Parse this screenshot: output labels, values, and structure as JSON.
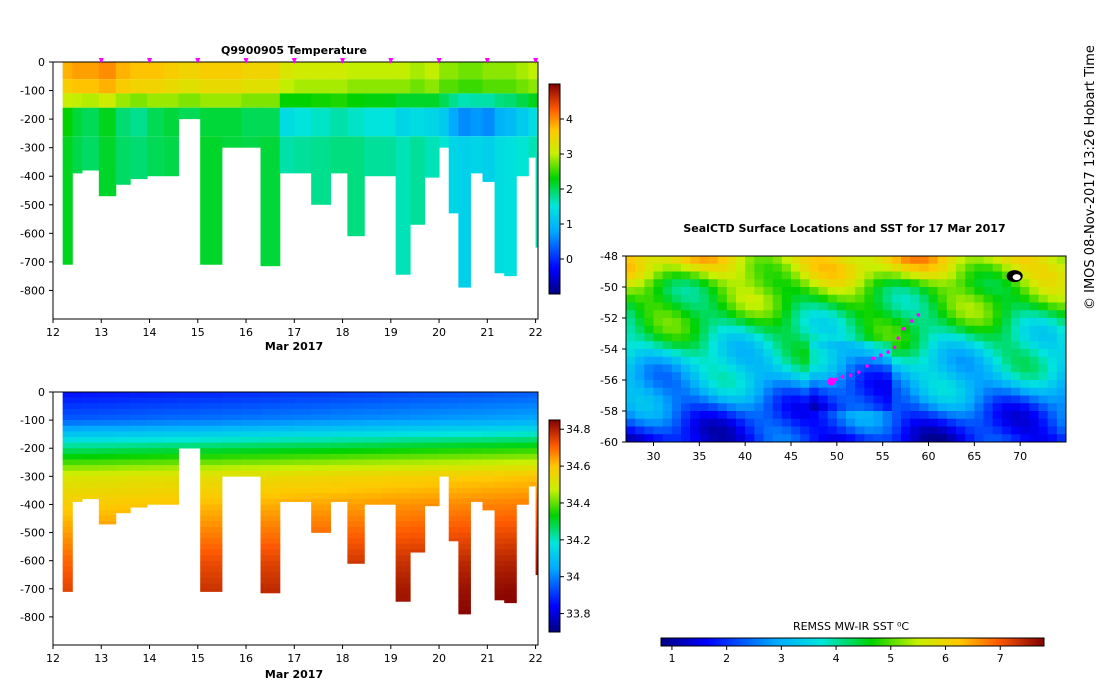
{
  "colors": {
    "background": "#ffffff",
    "track": "#ff00ff",
    "land_mask": "#ffffff"
  },
  "side_credit": "© IMOS 08-Nov-2017 13:26 Hobart Time",
  "chart_data": [
    {
      "id": "temperature",
      "type": "heatmap",
      "title": "Q9900905  Temperature",
      "xlabel": "Mar 2017",
      "ylabel": "",
      "xlim": [
        12,
        22.05
      ],
      "ylim": [
        -900,
        0
      ],
      "xticks": [
        12,
        13,
        14,
        15,
        16,
        17,
        18,
        19,
        20,
        21,
        22
      ],
      "yticks": [
        0,
        -100,
        -200,
        -300,
        -400,
        -500,
        -600,
        -700,
        -800
      ],
      "colorbar": {
        "min": -1,
        "max": 5,
        "ticks": [
          0,
          1,
          2,
          3,
          4
        ]
      },
      "profile_markers": [
        13,
        14,
        15,
        16,
        17,
        18,
        19,
        20,
        21,
        22
      ],
      "profiles": [
        {
          "day": 12.2,
          "max_depth": 710,
          "surface": 3.8,
          "mid": 2.3,
          "deep": 2.1
        },
        {
          "day": 12.4,
          "max_depth": 390,
          "surface": 3.9,
          "mid": 2.1,
          "deep": 2.0
        },
        {
          "day": 12.6,
          "max_depth": 380,
          "surface": 3.9,
          "mid": 2.0,
          "deep": 1.9
        },
        {
          "day": 12.95,
          "max_depth": 470,
          "surface": 4.0,
          "mid": 2.2,
          "deep": 2.1
        },
        {
          "day": 13.3,
          "max_depth": 430,
          "surface": 3.8,
          "mid": 1.9,
          "deep": 2.0
        },
        {
          "day": 13.6,
          "max_depth": 410,
          "surface": 3.7,
          "mid": 1.8,
          "deep": 2.0
        },
        {
          "day": 13.95,
          "max_depth": 400,
          "surface": 3.7,
          "mid": 2.0,
          "deep": 2.0
        },
        {
          "day": 14.3,
          "max_depth": 400,
          "surface": 3.6,
          "mid": 2.1,
          "deep": 2.0
        },
        {
          "day": 14.6,
          "max_depth": 200,
          "surface": 3.5,
          "mid": 2.0,
          "deep": 2.0
        },
        {
          "day": 15.05,
          "max_depth": 710,
          "surface": 3.6,
          "mid": 2.1,
          "deep": 2.2
        },
        {
          "day": 15.5,
          "max_depth": 300,
          "surface": 3.6,
          "mid": 2.1,
          "deep": 2.1
        },
        {
          "day": 15.9,
          "max_depth": 300,
          "surface": 3.5,
          "mid": 2.0,
          "deep": 2.1
        },
        {
          "day": 16.3,
          "max_depth": 715,
          "surface": 3.5,
          "mid": 2.0,
          "deep": 2.2
        },
        {
          "day": 16.7,
          "max_depth": 390,
          "surface": 3.2,
          "mid": 1.4,
          "deep": 2.0
        },
        {
          "day": 17.0,
          "max_depth": 390,
          "surface": 3.1,
          "mid": 1.5,
          "deep": 2.0
        },
        {
          "day": 17.35,
          "max_depth": 500,
          "surface": 3.1,
          "mid": 1.6,
          "deep": 2.0
        },
        {
          "day": 17.75,
          "max_depth": 390,
          "surface": 3.1,
          "mid": 1.7,
          "deep": 2.0
        },
        {
          "day": 18.1,
          "max_depth": 610,
          "surface": 3.0,
          "mid": 1.6,
          "deep": 2.1
        },
        {
          "day": 18.45,
          "max_depth": 400,
          "surface": 3.0,
          "mid": 1.5,
          "deep": 2.0
        },
        {
          "day": 18.8,
          "max_depth": 400,
          "surface": 3.0,
          "mid": 1.5,
          "deep": 2.0
        },
        {
          "day": 19.1,
          "max_depth": 745,
          "surface": 3.0,
          "mid": 1.3,
          "deep": 2.0
        },
        {
          "day": 19.4,
          "max_depth": 570,
          "surface": 2.9,
          "mid": 1.4,
          "deep": 2.1
        },
        {
          "day": 19.7,
          "max_depth": 405,
          "surface": 3.0,
          "mid": 1.3,
          "deep": 2.0
        },
        {
          "day": 20.0,
          "max_depth": 300,
          "surface": 2.8,
          "mid": 1.2,
          "deep": 1.9
        },
        {
          "day": 20.2,
          "max_depth": 530,
          "surface": 2.8,
          "mid": 0.8,
          "deep": 1.8
        },
        {
          "day": 20.4,
          "max_depth": 790,
          "surface": 2.7,
          "mid": 0.6,
          "deep": 1.9
        },
        {
          "day": 20.65,
          "max_depth": 390,
          "surface": 2.7,
          "mid": 0.7,
          "deep": 1.9
        },
        {
          "day": 20.9,
          "max_depth": 420,
          "surface": 2.8,
          "mid": 0.6,
          "deep": 1.9
        },
        {
          "day": 21.15,
          "max_depth": 740,
          "surface": 2.8,
          "mid": 0.9,
          "deep": 1.9
        },
        {
          "day": 21.35,
          "max_depth": 750,
          "surface": 2.8,
          "mid": 1.0,
          "deep": 1.9
        },
        {
          "day": 21.6,
          "max_depth": 400,
          "surface": 2.9,
          "mid": 1.2,
          "deep": 1.9
        },
        {
          "day": 21.85,
          "max_depth": 335,
          "surface": 3.0,
          "mid": 1.4,
          "deep": 1.9
        },
        {
          "day": 22.0,
          "max_depth": 650,
          "surface": 3.0,
          "mid": 1.5,
          "deep": 1.8
        }
      ]
    },
    {
      "id": "salinity",
      "type": "heatmap",
      "title": "",
      "xlabel": "Mar 2017",
      "ylabel": "",
      "xlim": [
        12,
        22.05
      ],
      "ylim": [
        -900,
        0
      ],
      "xticks": [
        12,
        13,
        14,
        15,
        16,
        17,
        18,
        19,
        20,
        21,
        22
      ],
      "yticks": [
        0,
        -100,
        -200,
        -300,
        -400,
        -500,
        -600,
        -700,
        -800
      ],
      "colorbar": {
        "min": 33.7,
        "max": 34.85,
        "ticks": [
          33.8,
          34,
          34.2,
          34.4,
          34.6,
          34.8
        ]
      },
      "surface_values": [
        33.85,
        33.88,
        33.92,
        33.95,
        33.98
      ],
      "depth_profile": [
        {
          "depth": 0,
          "value": 33.85
        },
        {
          "depth": 100,
          "value": 33.95
        },
        {
          "depth": 200,
          "value": 34.25
        },
        {
          "depth": 300,
          "value": 34.5
        },
        {
          "depth": 400,
          "value": 34.58
        },
        {
          "depth": 500,
          "value": 34.64
        },
        {
          "depth": 600,
          "value": 34.7
        },
        {
          "depth": 700,
          "value": 34.74
        },
        {
          "depth": 800,
          "value": 34.76
        }
      ]
    },
    {
      "id": "sst_map",
      "type": "heatmap",
      "title": "SealCTD Surface Locations and SST for 17 Mar 2017",
      "xlabel": "",
      "ylabel": "",
      "xlim": [
        27,
        75
      ],
      "ylim": [
        -60,
        -48
      ],
      "xticks": [
        30,
        35,
        40,
        45,
        50,
        55,
        60,
        65,
        70
      ],
      "yticks": [
        -48,
        -50,
        -52,
        -54,
        -56,
        -58,
        -60
      ],
      "colorbar": {
        "label": "REMSS MW-IR SST ⁰C",
        "min": 0.8,
        "max": 7.8,
        "ticks": [
          1,
          2,
          3,
          4,
          5,
          6,
          7
        ]
      },
      "sst_by_latitude": [
        {
          "lat": -48,
          "value": 6.0
        },
        {
          "lat": -49,
          "value": 5.6
        },
        {
          "lat": -50,
          "value": 4.9
        },
        {
          "lat": -52,
          "value": 4.4
        },
        {
          "lat": -54,
          "value": 3.9
        },
        {
          "lat": -56,
          "value": 3.1
        },
        {
          "lat": -58,
          "value": 2.3
        },
        {
          "lat": -60,
          "value": 1.7
        }
      ],
      "track": [
        {
          "lon": 58.9,
          "lat": -51.8
        },
        {
          "lon": 58.2,
          "lat": -52.2
        },
        {
          "lon": 57.3,
          "lat": -52.7
        },
        {
          "lon": 56.7,
          "lat": -53.3
        },
        {
          "lon": 56.3,
          "lat": -53.9
        },
        {
          "lon": 55.6,
          "lat": -54.2
        },
        {
          "lon": 54.8,
          "lat": -54.4
        },
        {
          "lon": 54.0,
          "lat": -54.6
        },
        {
          "lon": 53.3,
          "lat": -55.1
        },
        {
          "lon": 52.4,
          "lat": -55.5
        },
        {
          "lon": 51.5,
          "lat": -55.7
        },
        {
          "lon": 50.6,
          "lat": -55.8
        },
        {
          "lon": 49.9,
          "lat": -55.95
        },
        {
          "lon": 49.4,
          "lat": -56.1
        }
      ],
      "land": {
        "lon": 69.4,
        "lat": -49.3
      }
    }
  ]
}
